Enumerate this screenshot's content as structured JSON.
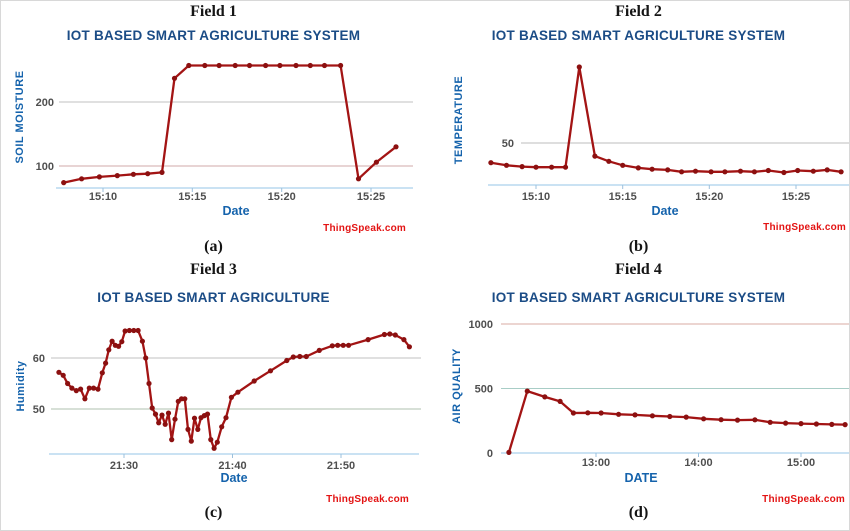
{
  "figure": {
    "background": "#ffffff"
  },
  "branding": {
    "watermark": "ThingSpeak.com",
    "color": "#e31414"
  },
  "colors": {
    "line": "#a31414",
    "marker": "#8c1010",
    "title_blue": "#1b4c86",
    "axis_label_blue": "#1563ac",
    "tick_gray": "#4f4f4f",
    "axis_line": "#b9d9ef",
    "tick_mark": "#9cc0dc"
  },
  "chart_data": [
    {
      "type": "line",
      "field_label": "Field 1",
      "title": "IOT BASED SMART AGRICULTURE SYSTEM",
      "caption": "(a)",
      "xlabel": "Date",
      "ylabel": "SOIL MOISTURE",
      "line_color": "#a31414",
      "marker_color": "#8c1010",
      "x_encoding": "minutes after 15:00",
      "xlim": [
        7.6,
        26.8
      ],
      "ylim": [
        66,
        272
      ],
      "x_ticks": [
        {
          "v": 10,
          "label": "15:10"
        },
        {
          "v": 15,
          "label": "15:15"
        },
        {
          "v": 20,
          "label": "15:20"
        },
        {
          "v": 25,
          "label": "15:25"
        }
      ],
      "y_ticks": [
        {
          "v": 100,
          "label": "100",
          "grid_color": "#d2a9a9"
        },
        {
          "v": 200,
          "label": "200",
          "grid_color": "#c2c2c2"
        }
      ],
      "x": [
        7.8,
        8.8,
        9.8,
        10.8,
        11.7,
        12.5,
        13.3,
        14.0,
        14.8,
        15.7,
        16.5,
        17.4,
        18.2,
        19.1,
        19.9,
        20.8,
        21.6,
        22.4,
        23.3,
        24.3,
        25.3,
        26.4
      ],
      "y": [
        74,
        80,
        83,
        85,
        87,
        88,
        90,
        237,
        257,
        257,
        257,
        257,
        257,
        257,
        257,
        257,
        257,
        257,
        257,
        80,
        106,
        130
      ]
    },
    {
      "type": "line",
      "field_label": "Field 2",
      "title": "IOT BASED SMART AGRICULTURE SYSTEM",
      "caption": "(b)",
      "xlabel": "Date",
      "ylabel": "TEMPERATURE",
      "line_color": "#a31414",
      "marker_color": "#8c1010",
      "x_encoding": "minutes after 15:00",
      "xlim": [
        7.4,
        27.8
      ],
      "ylim": [
        18,
        117
      ],
      "x_ticks": [
        {
          "v": 10,
          "label": "15:10"
        },
        {
          "v": 15,
          "label": "15:15"
        },
        {
          "v": 20,
          "label": "15:20"
        },
        {
          "v": 25,
          "label": "15:25"
        }
      ],
      "y_ticks": [
        {
          "v": 50,
          "label": "50",
          "grid_color": "#bdbdbd"
        }
      ],
      "x": [
        7.4,
        8.3,
        9.2,
        10.0,
        10.9,
        11.7,
        12.5,
        13.4,
        14.2,
        15.0,
        15.9,
        16.7,
        17.6,
        18.4,
        19.2,
        20.1,
        20.9,
        21.8,
        22.6,
        23.4,
        24.3,
        25.1,
        26.0,
        26.8,
        27.6
      ],
      "y": [
        35,
        33,
        32,
        31.5,
        31.5,
        31.5,
        108,
        40,
        36,
        33,
        31,
        30,
        29.5,
        28,
        28.5,
        28,
        28,
        28.5,
        28,
        29,
        27.5,
        29,
        28.5,
        29.5,
        28
      ]
    },
    {
      "type": "line",
      "field_label": "Field 3",
      "title": "IOT BASED SMART AGRICULTURE",
      "caption": "(c)",
      "xlabel": "Date",
      "ylabel": "Humidity",
      "line_color": "#a31414",
      "marker_color": "#8c1010",
      "x_encoding": "minutes after 21:00",
      "xlim": [
        23.7,
        56.5
      ],
      "ylim": [
        41,
        69
      ],
      "x_ticks": [
        {
          "v": 30,
          "label": "21:30"
        },
        {
          "v": 40,
          "label": "21:40"
        },
        {
          "v": 50,
          "label": "21:50"
        }
      ],
      "y_ticks": [
        {
          "v": 50,
          "label": "50",
          "grid_color": "#afc0af"
        },
        {
          "v": 60,
          "label": "60",
          "grid_color": "#c2c2c2"
        }
      ],
      "x": [
        24.0,
        24.4,
        24.8,
        25.2,
        25.6,
        26.0,
        26.4,
        26.8,
        27.2,
        27.6,
        28.0,
        28.3,
        28.6,
        28.9,
        29.2,
        29.5,
        29.8,
        30.1,
        30.5,
        30.9,
        31.3,
        31.7,
        32.0,
        32.3,
        32.6,
        32.9,
        33.2,
        33.5,
        33.8,
        34.1,
        34.4,
        34.7,
        35.0,
        35.3,
        35.6,
        35.9,
        36.2,
        36.5,
        36.8,
        37.1,
        37.4,
        37.7,
        38.0,
        38.3,
        38.6,
        39.0,
        39.4,
        39.9,
        40.5,
        42.0,
        43.5,
        45.0,
        45.6,
        46.2,
        46.8,
        48.0,
        49.2,
        49.7,
        50.2,
        50.7,
        52.5,
        54.0,
        54.5,
        55.0,
        55.8,
        56.3
      ],
      "y": [
        57.2,
        56.6,
        55.0,
        54.1,
        53.6,
        53.9,
        52.0,
        54.1,
        54.1,
        53.9,
        57.1,
        59.0,
        61.6,
        63.3,
        62.5,
        62.3,
        63.2,
        65.3,
        65.4,
        65.4,
        65.4,
        63.3,
        60.0,
        55.0,
        50.2,
        49.0,
        47.3,
        48.8,
        47.0,
        49.2,
        44.0,
        48.0,
        51.5,
        52.0,
        52.0,
        46.0,
        43.7,
        48.2,
        46.0,
        48.3,
        48.7,
        49.0,
        44.0,
        42.3,
        43.5,
        46.5,
        48.3,
        52.3,
        53.3,
        55.5,
        57.5,
        59.5,
        60.2,
        60.3,
        60.3,
        61.5,
        62.4,
        62.5,
        62.5,
        62.5,
        63.6,
        64.6,
        64.7,
        64.5,
        63.6,
        62.2
      ]
    },
    {
      "type": "line",
      "field_label": "Field 4",
      "title": "IOT BASED SMART AGRICULTURE SYSTEM",
      "caption": "(d)",
      "xlabel": "DATE",
      "ylabel": "AIR QUALITY",
      "line_color": "#a31414",
      "marker_color": "#8c1010",
      "x_encoding": "hour of day (decimal)",
      "xlim": [
        12.05,
        15.5
      ],
      "ylim": [
        0,
        1100
      ],
      "x_ticks": [
        {
          "v": 13,
          "label": "13:00"
        },
        {
          "v": 14,
          "label": "14:00"
        },
        {
          "v": 15,
          "label": "15:00"
        }
      ],
      "y_ticks": [
        {
          "v": 0,
          "label": "0",
          "grid_color": null
        },
        {
          "v": 500,
          "label": "500",
          "grid_color": "#a8cdc6"
        },
        {
          "v": 1000,
          "label": "1000",
          "grid_color": "#d8aba3"
        }
      ],
      "x": [
        12.15,
        12.33,
        12.5,
        12.65,
        12.78,
        12.92,
        13.05,
        13.22,
        13.38,
        13.55,
        13.72,
        13.88,
        14.05,
        14.22,
        14.38,
        14.55,
        14.7,
        14.85,
        15.0,
        15.15,
        15.3,
        15.43
      ],
      "y": [
        5,
        480,
        435,
        400,
        310,
        312,
        310,
        300,
        295,
        288,
        283,
        278,
        265,
        258,
        255,
        257,
        238,
        232,
        228,
        225,
        222,
        220
      ]
    }
  ]
}
